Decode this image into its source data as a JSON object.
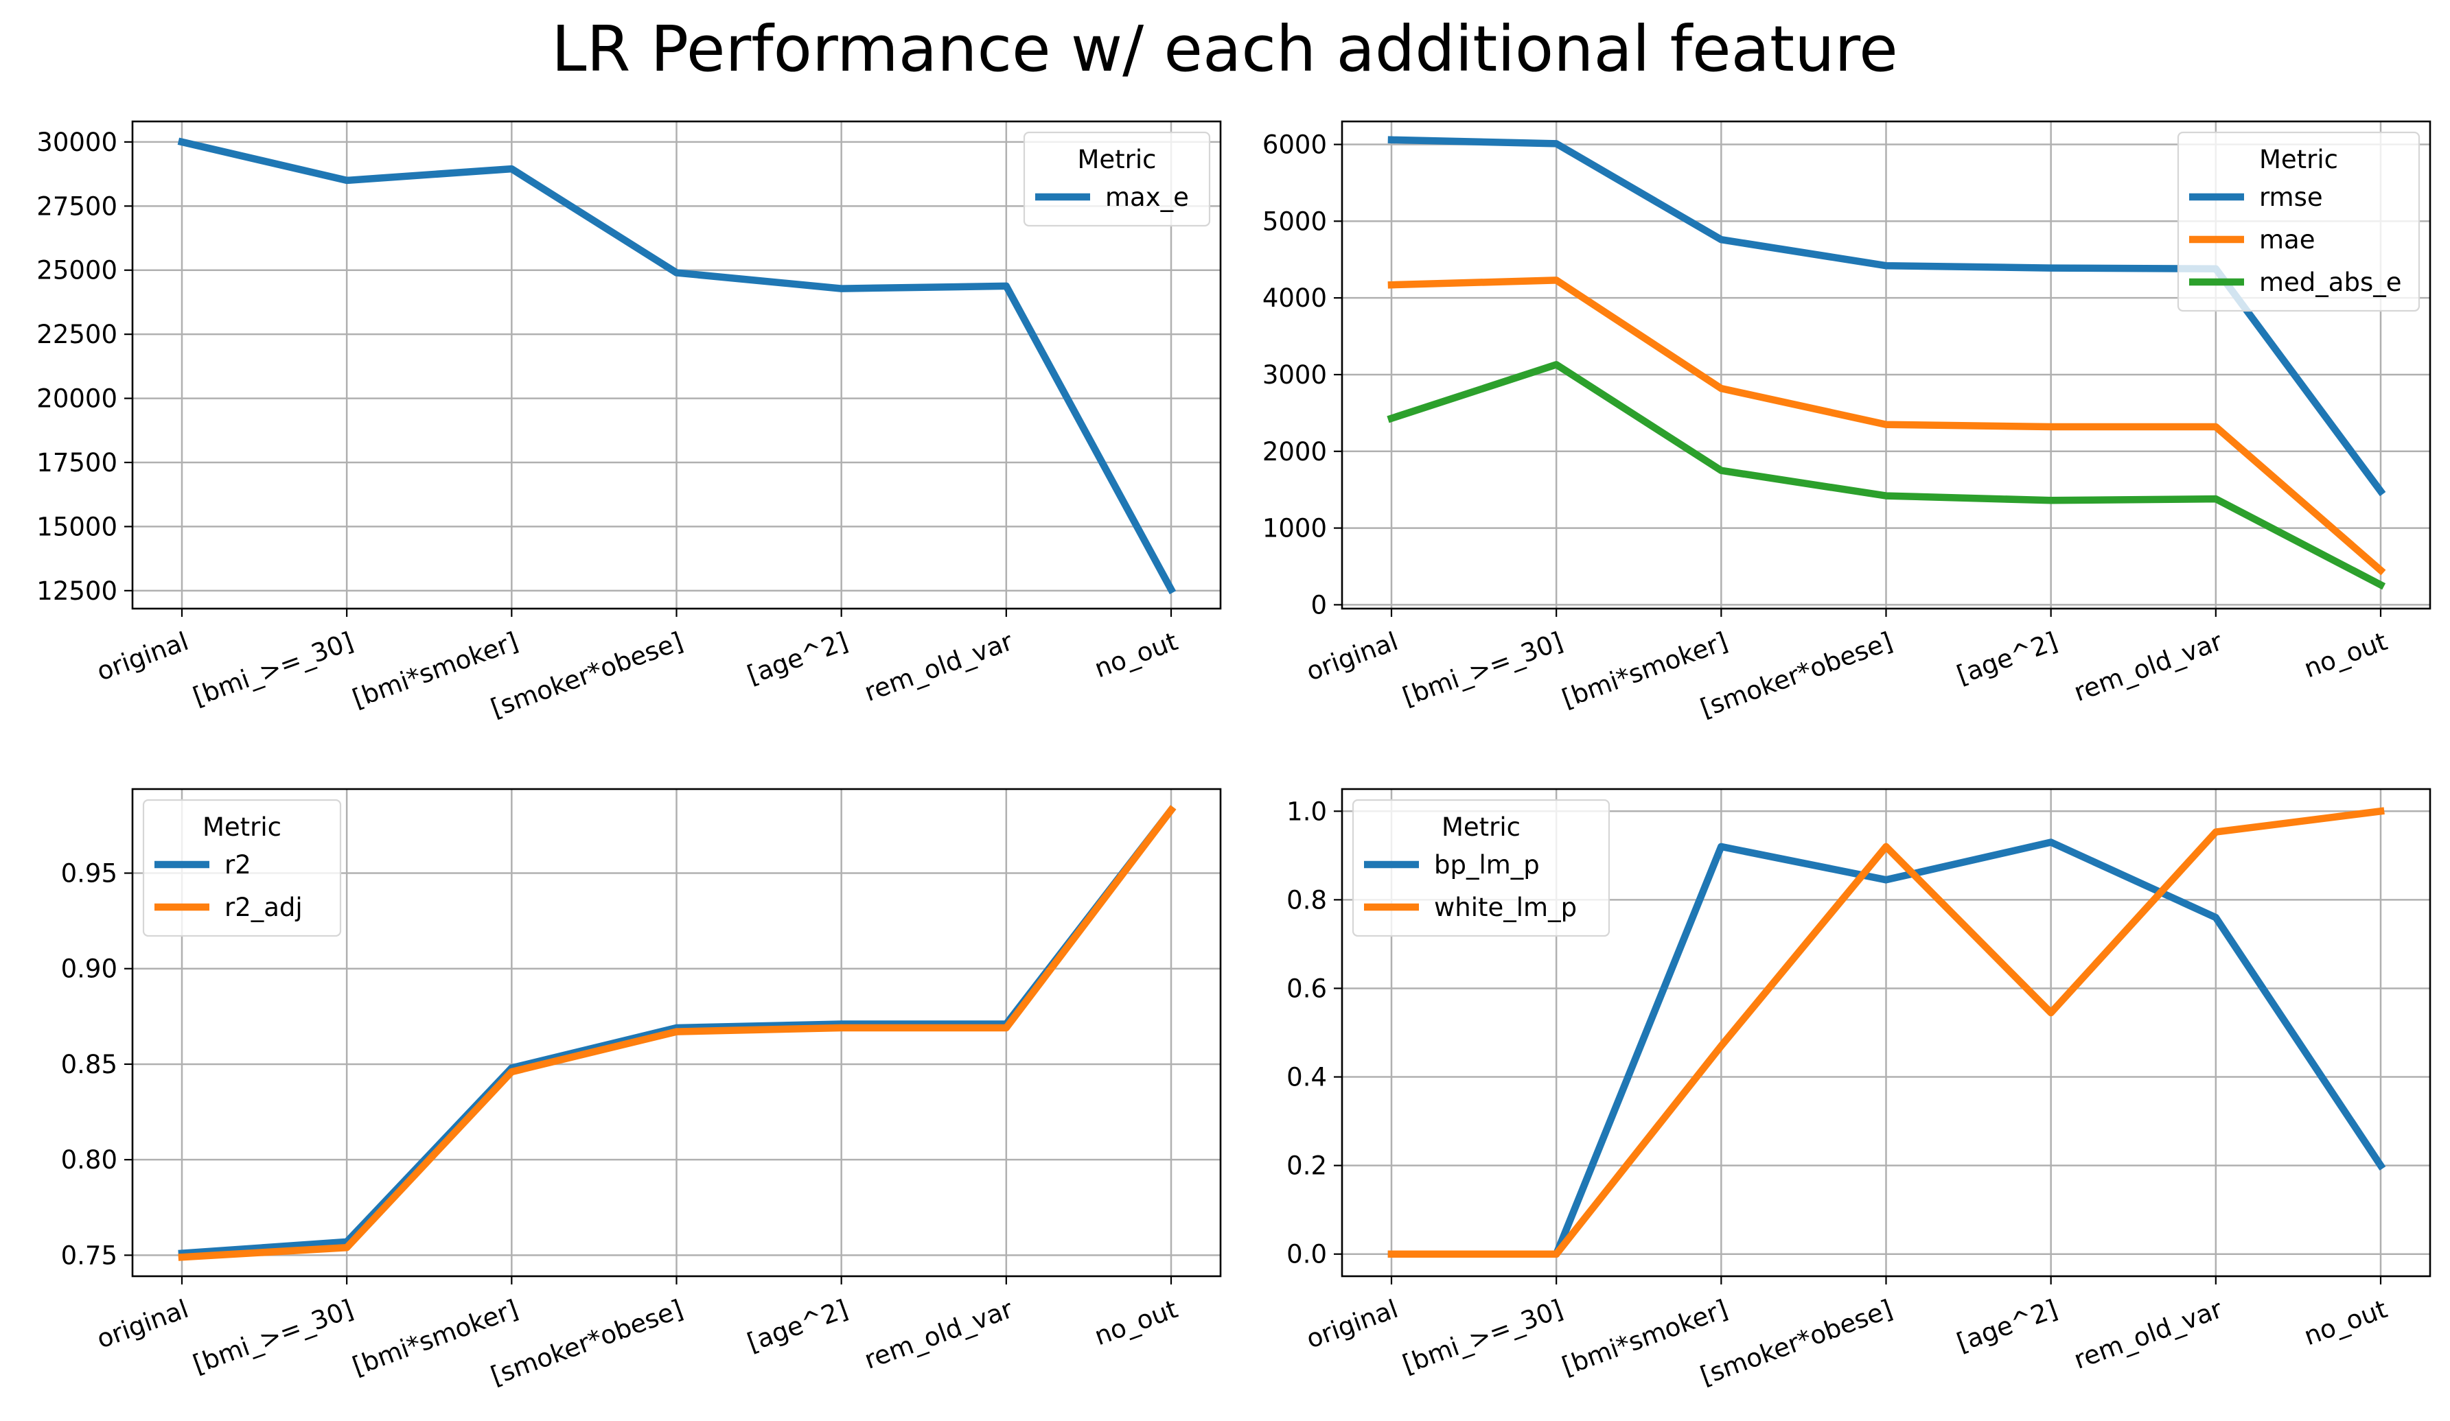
{
  "figure": {
    "title": "LR Performance w/ each additional feature"
  },
  "colors": {
    "blue": "#1f77b4",
    "orange": "#ff7f0e",
    "green": "#2ca02c"
  },
  "chart_data": [
    {
      "type": "line",
      "position": "top-left",
      "categories": [
        "original",
        "[bmi_>=_30]",
        "[bmi*smoker]",
        "[smoker*obese]",
        "[age^2]",
        "rem_old_var",
        "no_out"
      ],
      "ylim": [
        11800,
        30800
      ],
      "yticks": [
        12500,
        15000,
        17500,
        20000,
        22500,
        25000,
        27500,
        30000
      ],
      "grid": true,
      "legend": {
        "title": "Metric",
        "placement": "top-right"
      },
      "series": [
        {
          "name": "max_e",
          "color": "#1f77b4",
          "values": [
            30000,
            28500,
            28950,
            24900,
            24280,
            24380,
            12550
          ]
        }
      ]
    },
    {
      "type": "line",
      "position": "top-right",
      "categories": [
        "original",
        "[bmi_>=_30]",
        "[bmi*smoker]",
        "[smoker*obese]",
        "[age^2]",
        "rem_old_var",
        "no_out"
      ],
      "ylim": [
        -50,
        6300
      ],
      "yticks": [
        0,
        1000,
        2000,
        3000,
        4000,
        5000,
        6000
      ],
      "grid": true,
      "legend": {
        "title": "Metric",
        "placement": "top-right"
      },
      "series": [
        {
          "name": "rmse",
          "color": "#1f77b4",
          "values": [
            6060,
            6010,
            4760,
            4420,
            4390,
            4380,
            1480
          ]
        },
        {
          "name": "mae",
          "color": "#ff7f0e",
          "values": [
            4170,
            4230,
            2820,
            2350,
            2320,
            2320,
            450
          ]
        },
        {
          "name": "med_abs_e",
          "color": "#2ca02c",
          "values": [
            2430,
            3130,
            1750,
            1420,
            1360,
            1380,
            260
          ]
        }
      ]
    },
    {
      "type": "line",
      "position": "bottom-left",
      "categories": [
        "original",
        "[bmi_>=_30]",
        "[bmi*smoker]",
        "[smoker*obese]",
        "[age^2]",
        "rem_old_var",
        "no_out"
      ],
      "ylim": [
        0.739,
        0.994
      ],
      "yticks": [
        0.75,
        0.8,
        0.85,
        0.9,
        0.95
      ],
      "ytick_labels": [
        "0.75",
        "0.80",
        "0.85",
        "0.90",
        "0.95"
      ],
      "grid": true,
      "legend": {
        "title": "Metric",
        "placement": "top-left"
      },
      "series": [
        {
          "name": "r2",
          "color": "#1f77b4",
          "values": [
            0.751,
            0.757,
            0.848,
            0.869,
            0.871,
            0.871,
            0.983
          ]
        },
        {
          "name": "r2_adj",
          "color": "#ff7f0e",
          "values": [
            0.749,
            0.754,
            0.846,
            0.867,
            0.869,
            0.869,
            0.983
          ]
        }
      ]
    },
    {
      "type": "line",
      "position": "bottom-right",
      "categories": [
        "original",
        "[bmi_>=_30]",
        "[bmi*smoker]",
        "[smoker*obese]",
        "[age^2]",
        "rem_old_var",
        "no_out"
      ],
      "ylim": [
        -0.05,
        1.05
      ],
      "yticks": [
        0,
        0.2,
        0.4,
        0.6,
        0.8,
        1
      ],
      "ytick_labels": [
        "0.0",
        "0.2",
        "0.4",
        "0.6",
        "0.8",
        "1.0"
      ],
      "grid": true,
      "legend": {
        "title": "Metric",
        "placement": "top-left"
      },
      "series": [
        {
          "name": "bp_lm_p",
          "color": "#1f77b4",
          "values": [
            0.0,
            0.0,
            0.92,
            0.845,
            0.93,
            0.76,
            0.2
          ]
        },
        {
          "name": "white_lm_p",
          "color": "#ff7f0e",
          "values": [
            0.0,
            0.0,
            0.47,
            0.92,
            0.545,
            0.953,
            1.0
          ]
        }
      ]
    }
  ]
}
